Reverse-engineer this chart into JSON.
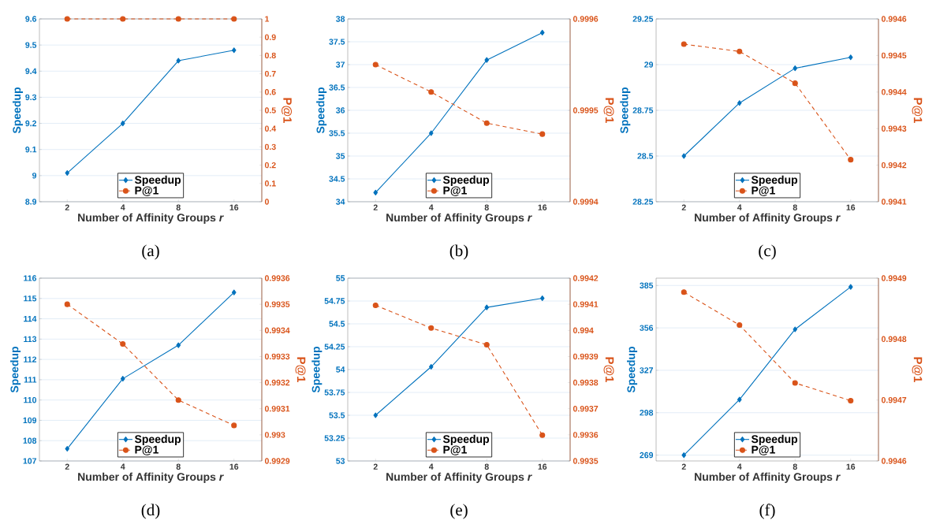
{
  "chart_data": [
    {
      "type": "line",
      "categories": [
        "2",
        "4",
        "8",
        "16"
      ],
      "xlabel": "Number of Affinity Groups *r*",
      "ylabel": "Speedup",
      "y2label": "P@1",
      "ylim": [
        8.9,
        9.6
      ],
      "yticks": [
        8.9,
        9,
        9.1,
        9.2,
        9.3,
        9.4,
        9.5,
        9.6
      ],
      "y2lim": [
        0,
        1
      ],
      "y2ticks": [
        0,
        0.1,
        0.2,
        0.3,
        0.4,
        0.5,
        0.6,
        0.7,
        0.8,
        0.9,
        1
      ],
      "grid": "y",
      "legend": "bottom",
      "annotations": [
        "(a)"
      ],
      "series": [
        {
          "name": "Speedup",
          "color": "#0072bd",
          "marker": "diamond",
          "line_style": "solid",
          "values": [
            9.01,
            9.2,
            9.44,
            9.48
          ]
        },
        {
          "name": "P@1",
          "color": "#d95319",
          "marker": "circle",
          "line_style": "dashed",
          "axis": "y2",
          "values": [
            1,
            1,
            1,
            1
          ]
        }
      ]
    },
    {
      "type": "line",
      "categories": [
        "2",
        "4",
        "8",
        "16"
      ],
      "xlabel": "Number of Affinity Groups *r*",
      "ylabel": "Speedup",
      "y2label": "P@1",
      "ylim": [
        34,
        38
      ],
      "yticks": [
        34,
        34.5,
        35,
        35.5,
        36,
        36.5,
        37,
        37.5,
        38
      ],
      "y2lim": [
        0.9994,
        0.9996
      ],
      "y2ticks": [
        0.9994,
        0.9995,
        0.9996
      ],
      "grid": "y",
      "legend": "bottom",
      "annotations": [
        "(b)"
      ],
      "series": [
        {
          "name": "Speedup",
          "color": "#0072bd",
          "marker": "diamond",
          "line_style": "solid",
          "values": [
            34.2,
            35.5,
            37.1,
            37.7
          ]
        },
        {
          "name": "P@1",
          "color": "#d95319",
          "marker": "circle",
          "line_style": "dashed",
          "axis": "y2",
          "values": [
            0.99955,
            0.99952,
            0.999486,
            0.999474
          ]
        }
      ]
    },
    {
      "type": "line",
      "categories": [
        "2",
        "4",
        "8",
        "16"
      ],
      "xlabel": "Number of Affinity Groups *r*",
      "ylabel": "Speedup",
      "y2label": "P@1",
      "ylim": [
        28.25,
        29.25
      ],
      "yticks": [
        28.25,
        28.5,
        28.75,
        29,
        29.25
      ],
      "y2lim": [
        0.9941,
        0.9946
      ],
      "y2ticks": [
        0.9941,
        0.9942,
        0.9943,
        0.9944,
        0.9945,
        0.9946
      ],
      "grid": "y",
      "legend": "bottom",
      "annotations": [
        "(c)"
      ],
      "series": [
        {
          "name": "Speedup",
          "color": "#0072bd",
          "marker": "diamond",
          "line_style": "solid",
          "values": [
            28.5,
            28.79,
            28.98,
            29.04
          ]
        },
        {
          "name": "P@1",
          "color": "#d95319",
          "marker": "circle",
          "line_style": "dashed",
          "axis": "y2",
          "values": [
            0.994531,
            0.994511,
            0.994424,
            0.994215
          ]
        }
      ]
    },
    {
      "type": "line",
      "categories": [
        "2",
        "4",
        "8",
        "16"
      ],
      "xlabel": "Number of Affinity Groups *r*",
      "ylabel": "Speedup",
      "y2label": "P@1",
      "ylim": [
        107,
        116
      ],
      "yticks": [
        107,
        108,
        109,
        110,
        111,
        112,
        113,
        114,
        115,
        116
      ],
      "y2lim": [
        0.9929,
        0.9936
      ],
      "y2ticks": [
        0.9929,
        0.993,
        0.9931,
        0.9932,
        0.9933,
        0.9934,
        0.9935,
        0.9936
      ],
      "grid": "y",
      "legend": "bottom",
      "annotations": [
        "(d)"
      ],
      "series": [
        {
          "name": "Speedup",
          "color": "#0072bd",
          "marker": "diamond",
          "line_style": "solid",
          "values": [
            107.6,
            111.05,
            112.7,
            115.3
          ]
        },
        {
          "name": "P@1",
          "color": "#d95319",
          "marker": "circle",
          "line_style": "dashed",
          "axis": "y2",
          "values": [
            0.9935,
            0.993348,
            0.993133,
            0.993036
          ]
        }
      ]
    },
    {
      "type": "line",
      "categories": [
        "2",
        "4",
        "8",
        "16"
      ],
      "xlabel": "Number of Affinity Groups *r*",
      "ylabel": "Speedup",
      "y2label": "P@1",
      "ylim": [
        53,
        55
      ],
      "yticks": [
        53,
        53.25,
        53.5,
        53.75,
        54,
        54.25,
        54.5,
        54.75,
        55
      ],
      "y2lim": [
        0.9935,
        0.9942
      ],
      "y2ticks": [
        0.9935,
        0.9936,
        0.9937,
        0.9938,
        0.9939,
        0.994,
        0.9941,
        0.9942
      ],
      "grid": "y",
      "legend": "bottom",
      "annotations": [
        "(e)"
      ],
      "series": [
        {
          "name": "Speedup",
          "color": "#0072bd",
          "marker": "diamond",
          "line_style": "solid",
          "values": [
            53.5,
            54.03,
            54.68,
            54.78
          ]
        },
        {
          "name": "P@1",
          "color": "#d95319",
          "marker": "circle",
          "line_style": "dashed",
          "axis": "y2",
          "values": [
            0.994096,
            0.994009,
            0.993945,
            0.993599
          ]
        }
      ]
    },
    {
      "type": "line",
      "categories": [
        "2",
        "4",
        "8",
        "16"
      ],
      "xlabel": "Number of Affinity Groups *r*",
      "ylabel": "Speedup",
      "y2label": "P@1",
      "ylim": [
        265,
        390
      ],
      "yticks": [
        269,
        298,
        327,
        356,
        385
      ],
      "y2lim": [
        0.9946,
        0.9949
      ],
      "y2ticks": [
        0.9946,
        0.9947,
        0.9948,
        0.9949
      ],
      "grid": "y",
      "legend": "bottom",
      "annotations": [
        "(f)"
      ],
      "series": [
        {
          "name": "Speedup",
          "color": "#0072bd",
          "marker": "diamond",
          "line_style": "solid",
          "values": [
            269,
            307,
            355,
            384
          ]
        },
        {
          "name": "P@1",
          "color": "#d95319",
          "marker": "circle",
          "line_style": "dashed",
          "axis": "y2",
          "values": [
            0.994877,
            0.994823,
            0.994728,
            0.994699
          ]
        }
      ]
    }
  ]
}
